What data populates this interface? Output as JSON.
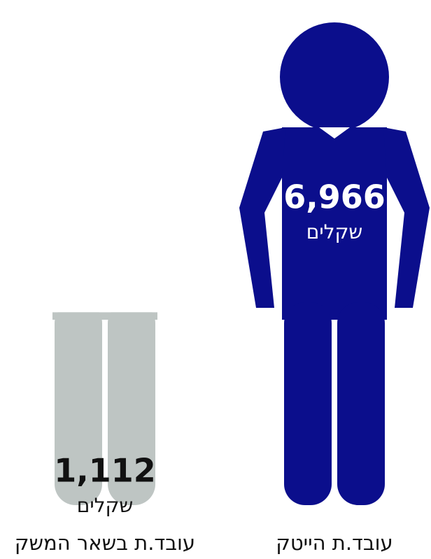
{
  "chart_data": {
    "type": "pictogram",
    "categories": [
      "עובד.ת הייטק",
      "עובד.ת בשאר המשק"
    ],
    "values": [
      6966,
      1112
    ],
    "value_labels": [
      "6,966",
      "1,112"
    ],
    "unit": "שקלים",
    "colors": [
      "#0b0e8c",
      "#bec5c3"
    ]
  }
}
